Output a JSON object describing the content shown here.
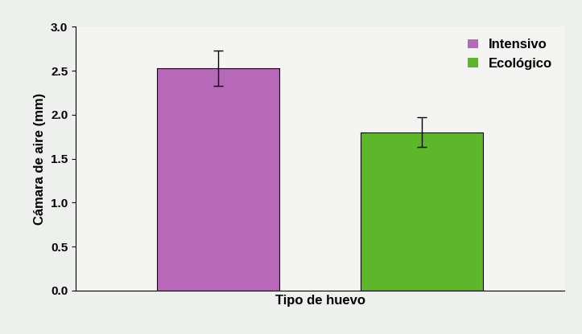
{
  "chart_data": {
    "type": "bar",
    "x_label": "Tipo de huevo",
    "y_label": "Cámara de aire (mm)",
    "categories": [
      null
    ],
    "series": [
      {
        "name": "Intensivo",
        "color": "#b868b8",
        "values": [
          2.53
        ],
        "errors": [
          0.2
        ]
      },
      {
        "name": "Ecológico",
        "color": "#5cb82a",
        "values": [
          1.8
        ],
        "errors": [
          0.17
        ]
      }
    ],
    "ylim": [
      0,
      3.0
    ],
    "yticks": [
      {
        "value": 0,
        "label": "0.0"
      },
      {
        "value": 0.5,
        "label": "0.5"
      },
      {
        "value": 1.0,
        "label": "1.0"
      },
      {
        "value": 1.5,
        "label": "1.5"
      },
      {
        "value": 2.0,
        "label": "2.0"
      },
      {
        "value": 2.5,
        "label": "2.5"
      },
      {
        "value": 3.0,
        "label": "3.0"
      }
    ],
    "legend": "upper right",
    "tick_labels": "y",
    "grid": false
  }
}
